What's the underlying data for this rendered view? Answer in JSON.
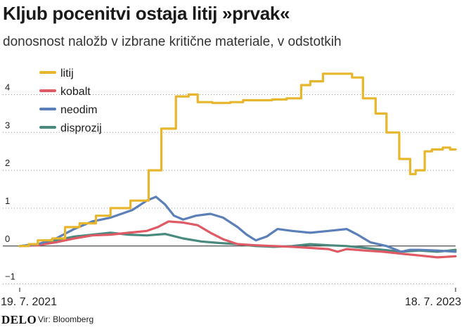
{
  "chart_data": {
    "type": "line",
    "title": "Kljub pocenitvi ostaja litij »prvak«",
    "subtitle": "donosnost naložb v izbrane kritične materiale, v odstotkih",
    "x_labels": {
      "start": "19. 7. 2021",
      "end": "18. 7. 2023"
    },
    "x_domain": [
      0,
      24
    ],
    "ylim": [
      -1.1,
      4.9
    ],
    "y_ticks": [
      -1,
      0,
      1,
      2,
      3,
      4
    ],
    "grid": "horizontal dotted",
    "legend": "top-left",
    "series": [
      {
        "name": "litij",
        "color": "#e8b62c",
        "style": "step",
        "x": [
          0,
          0.5,
          1,
          1.8,
          2.5,
          3.3,
          4.2,
          5,
          6.1,
          7.1,
          7.8,
          8.6,
          9.3,
          9.8,
          10.6,
          11.6,
          12.3,
          13,
          13.9,
          14.7,
          15.5,
          16,
          16.7,
          17.4,
          18.3,
          18.9,
          19.6,
          20.2,
          20.9,
          21.5,
          21.8,
          22.3,
          22.7,
          23.3,
          23.7,
          24
        ],
        "values": [
          0,
          0.05,
          0.15,
          0.2,
          0.5,
          0.6,
          0.8,
          1.0,
          1.2,
          2.0,
          3.1,
          3.95,
          4.0,
          3.8,
          3.78,
          3.8,
          3.85,
          3.85,
          3.87,
          3.9,
          4.25,
          4.35,
          4.55,
          4.55,
          4.45,
          3.9,
          3.5,
          3.0,
          2.3,
          1.9,
          2.0,
          2.5,
          2.55,
          2.6,
          2.55,
          2.55
        ]
      },
      {
        "name": "kobalt",
        "color": "#e05a66",
        "style": "line",
        "x": [
          0,
          1,
          2,
          3,
          4,
          5,
          6,
          7,
          7.6,
          8.2,
          9,
          9.8,
          10.5,
          11.2,
          12,
          13,
          14,
          15,
          16,
          17,
          17.5,
          18,
          19,
          20,
          21,
          22,
          23,
          24
        ],
        "values": [
          0,
          0.02,
          0.1,
          0.2,
          0.28,
          0.3,
          0.35,
          0.4,
          0.5,
          0.65,
          0.62,
          0.55,
          0.35,
          0.18,
          0.05,
          0.02,
          0.0,
          -0.02,
          -0.05,
          -0.08,
          -0.15,
          -0.08,
          -0.12,
          -0.15,
          -0.2,
          -0.25,
          -0.3,
          -0.27
        ]
      },
      {
        "name": "neodim",
        "color": "#5b7fb8",
        "style": "line",
        "x": [
          0,
          1,
          2,
          3,
          4,
          5,
          5.6,
          6.2,
          7,
          7.5,
          8,
          8.5,
          9,
          9.7,
          10.5,
          11.2,
          12,
          12.5,
          13,
          13.6,
          14.2,
          15,
          16,
          17,
          18,
          18.6,
          19.3,
          20.2,
          21,
          21.5,
          22,
          23,
          24
        ],
        "values": [
          0,
          0.05,
          0.2,
          0.45,
          0.65,
          0.75,
          0.85,
          0.95,
          1.2,
          1.3,
          1.1,
          0.8,
          0.7,
          0.8,
          0.85,
          0.75,
          0.5,
          0.3,
          0.15,
          0.25,
          0.45,
          0.4,
          0.35,
          0.4,
          0.45,
          0.3,
          0.1,
          0.0,
          -0.15,
          -0.1,
          -0.1,
          -0.12,
          -0.15
        ]
      },
      {
        "name": "disprozij",
        "color": "#4a8a7e",
        "style": "line",
        "x": [
          0,
          1,
          2,
          3,
          4,
          5,
          6,
          7,
          8,
          9,
          10,
          11,
          12,
          13,
          14,
          15,
          16,
          17,
          18,
          19,
          20,
          21,
          22,
          23,
          24
        ],
        "values": [
          0,
          0.05,
          0.15,
          0.25,
          0.3,
          0.35,
          0.3,
          0.28,
          0.32,
          0.2,
          0.12,
          0.08,
          0.05,
          0.0,
          -0.02,
          0.0,
          0.05,
          0.02,
          0.0,
          -0.05,
          -0.1,
          -0.15,
          -0.12,
          -0.15,
          -0.1
        ]
      }
    ]
  },
  "footer": {
    "logo": "DELO",
    "source": "Vir: Bloomberg"
  }
}
